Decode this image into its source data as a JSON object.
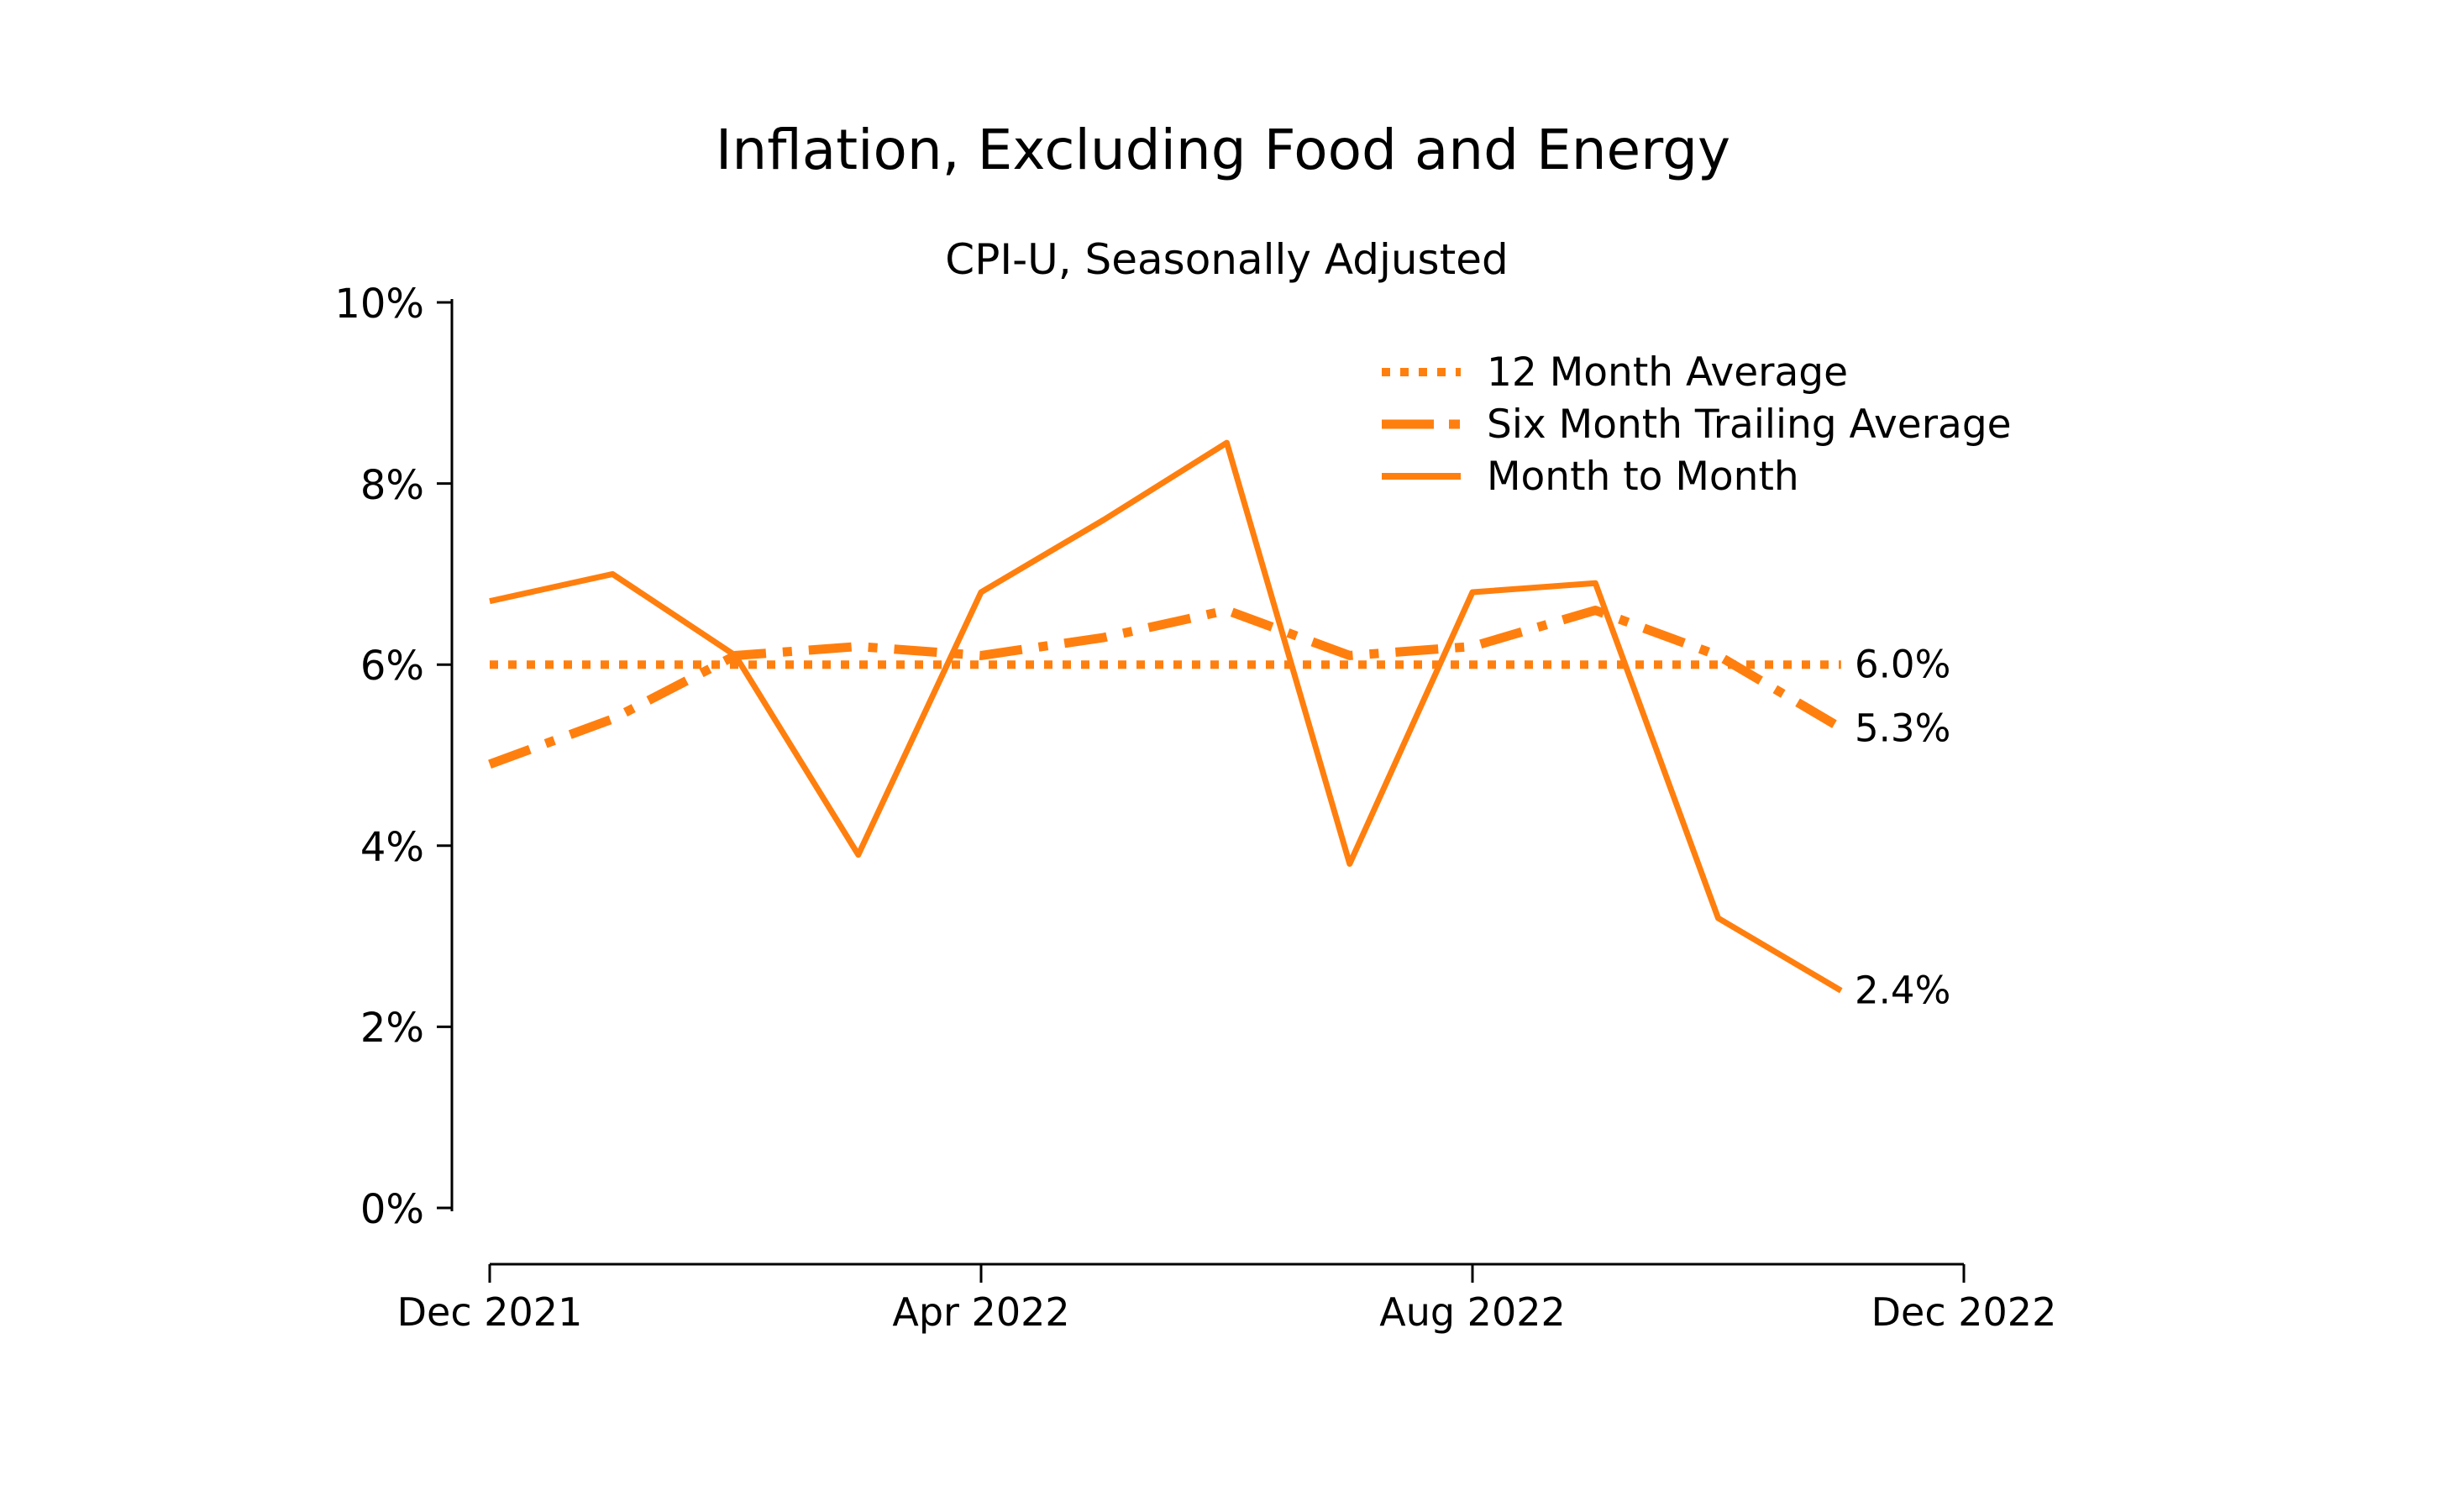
{
  "page": {
    "background": "#ffffff",
    "accent_color": "#ff7f0e",
    "text_color": "#000000"
  },
  "chart_data": {
    "type": "line",
    "title": "Inflation, Excluding Food and Energy",
    "subtitle": "CPI-U, Seasonally Adjusted",
    "xlabel": "",
    "ylabel": "",
    "ylim": [
      0,
      10
    ],
    "grid": false,
    "legend_position": "upper right inside",
    "x": [
      "Dec 2021",
      "Jan 2022",
      "Feb 2022",
      "Mar 2022",
      "Apr 2022",
      "May 2022",
      "Jun 2022",
      "Jul 2022",
      "Aug 2022",
      "Sep 2022",
      "Oct 2022",
      "Nov 2022"
    ],
    "x_axis_total_months": 12,
    "x_ticks": [
      {
        "label": "Dec 2021",
        "month_index": 0
      },
      {
        "label": "Apr 2022",
        "month_index": 4
      },
      {
        "label": "Aug 2022",
        "month_index": 8
      },
      {
        "label": "Dec 2022",
        "month_index": 12
      }
    ],
    "y_tick_labels": [
      "0%",
      "2%",
      "4%",
      "6%",
      "8%",
      "10%"
    ],
    "series": [
      {
        "name": "12 Month Average",
        "style": "dotted",
        "end_label": "6.0%",
        "values": [
          6.0,
          6.0,
          6.0,
          6.0,
          6.0,
          6.0,
          6.0,
          6.0,
          6.0,
          6.0,
          6.0,
          6.0
        ]
      },
      {
        "name": "Six Month Trailing Average",
        "style": "dashdot",
        "end_label": "5.3%",
        "values": [
          4.9,
          5.4,
          6.1,
          6.2,
          6.1,
          6.3,
          6.6,
          6.1,
          6.2,
          6.6,
          6.1,
          5.3
        ]
      },
      {
        "name": "Month to Month",
        "style": "solid",
        "end_label": "2.4%",
        "values": [
          6.7,
          7.0,
          6.1,
          3.9,
          6.8,
          7.6,
          8.45,
          3.8,
          6.8,
          6.9,
          3.2,
          2.4
        ]
      }
    ]
  }
}
